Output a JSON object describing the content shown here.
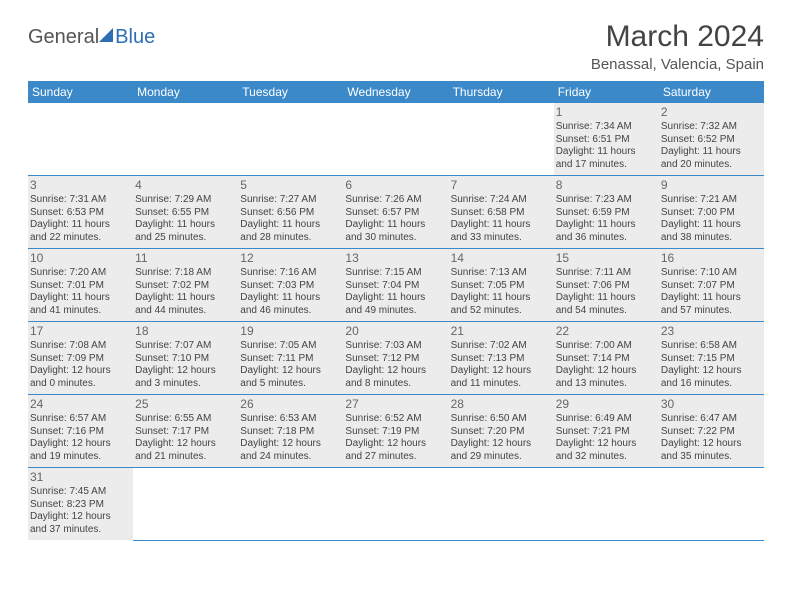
{
  "logo": {
    "part1": "General",
    "part2": "Blue"
  },
  "title": "March 2024",
  "subtitle": "Benassal, Valencia, Spain",
  "day_headers": [
    "Sunday",
    "Monday",
    "Tuesday",
    "Wednesday",
    "Thursday",
    "Friday",
    "Saturday"
  ],
  "colors": {
    "header_bg": "#3b89c9",
    "row_bg": "#ececec",
    "row_border": "#3b89c9",
    "text": "#444444"
  },
  "weeks": [
    [
      null,
      null,
      null,
      null,
      null,
      {
        "d": "1",
        "sr": "Sunrise: 7:34 AM",
        "ss": "Sunset: 6:51 PM",
        "dl1": "Daylight: 11 hours",
        "dl2": "and 17 minutes."
      },
      {
        "d": "2",
        "sr": "Sunrise: 7:32 AM",
        "ss": "Sunset: 6:52 PM",
        "dl1": "Daylight: 11 hours",
        "dl2": "and 20 minutes."
      }
    ],
    [
      {
        "d": "3",
        "sr": "Sunrise: 7:31 AM",
        "ss": "Sunset: 6:53 PM",
        "dl1": "Daylight: 11 hours",
        "dl2": "and 22 minutes."
      },
      {
        "d": "4",
        "sr": "Sunrise: 7:29 AM",
        "ss": "Sunset: 6:55 PM",
        "dl1": "Daylight: 11 hours",
        "dl2": "and 25 minutes."
      },
      {
        "d": "5",
        "sr": "Sunrise: 7:27 AM",
        "ss": "Sunset: 6:56 PM",
        "dl1": "Daylight: 11 hours",
        "dl2": "and 28 minutes."
      },
      {
        "d": "6",
        "sr": "Sunrise: 7:26 AM",
        "ss": "Sunset: 6:57 PM",
        "dl1": "Daylight: 11 hours",
        "dl2": "and 30 minutes."
      },
      {
        "d": "7",
        "sr": "Sunrise: 7:24 AM",
        "ss": "Sunset: 6:58 PM",
        "dl1": "Daylight: 11 hours",
        "dl2": "and 33 minutes."
      },
      {
        "d": "8",
        "sr": "Sunrise: 7:23 AM",
        "ss": "Sunset: 6:59 PM",
        "dl1": "Daylight: 11 hours",
        "dl2": "and 36 minutes."
      },
      {
        "d": "9",
        "sr": "Sunrise: 7:21 AM",
        "ss": "Sunset: 7:00 PM",
        "dl1": "Daylight: 11 hours",
        "dl2": "and 38 minutes."
      }
    ],
    [
      {
        "d": "10",
        "sr": "Sunrise: 7:20 AM",
        "ss": "Sunset: 7:01 PM",
        "dl1": "Daylight: 11 hours",
        "dl2": "and 41 minutes."
      },
      {
        "d": "11",
        "sr": "Sunrise: 7:18 AM",
        "ss": "Sunset: 7:02 PM",
        "dl1": "Daylight: 11 hours",
        "dl2": "and 44 minutes."
      },
      {
        "d": "12",
        "sr": "Sunrise: 7:16 AM",
        "ss": "Sunset: 7:03 PM",
        "dl1": "Daylight: 11 hours",
        "dl2": "and 46 minutes."
      },
      {
        "d": "13",
        "sr": "Sunrise: 7:15 AM",
        "ss": "Sunset: 7:04 PM",
        "dl1": "Daylight: 11 hours",
        "dl2": "and 49 minutes."
      },
      {
        "d": "14",
        "sr": "Sunrise: 7:13 AM",
        "ss": "Sunset: 7:05 PM",
        "dl1": "Daylight: 11 hours",
        "dl2": "and 52 minutes."
      },
      {
        "d": "15",
        "sr": "Sunrise: 7:11 AM",
        "ss": "Sunset: 7:06 PM",
        "dl1": "Daylight: 11 hours",
        "dl2": "and 54 minutes."
      },
      {
        "d": "16",
        "sr": "Sunrise: 7:10 AM",
        "ss": "Sunset: 7:07 PM",
        "dl1": "Daylight: 11 hours",
        "dl2": "and 57 minutes."
      }
    ],
    [
      {
        "d": "17",
        "sr": "Sunrise: 7:08 AM",
        "ss": "Sunset: 7:09 PM",
        "dl1": "Daylight: 12 hours",
        "dl2": "and 0 minutes."
      },
      {
        "d": "18",
        "sr": "Sunrise: 7:07 AM",
        "ss": "Sunset: 7:10 PM",
        "dl1": "Daylight: 12 hours",
        "dl2": "and 3 minutes."
      },
      {
        "d": "19",
        "sr": "Sunrise: 7:05 AM",
        "ss": "Sunset: 7:11 PM",
        "dl1": "Daylight: 12 hours",
        "dl2": "and 5 minutes."
      },
      {
        "d": "20",
        "sr": "Sunrise: 7:03 AM",
        "ss": "Sunset: 7:12 PM",
        "dl1": "Daylight: 12 hours",
        "dl2": "and 8 minutes."
      },
      {
        "d": "21",
        "sr": "Sunrise: 7:02 AM",
        "ss": "Sunset: 7:13 PM",
        "dl1": "Daylight: 12 hours",
        "dl2": "and 11 minutes."
      },
      {
        "d": "22",
        "sr": "Sunrise: 7:00 AM",
        "ss": "Sunset: 7:14 PM",
        "dl1": "Daylight: 12 hours",
        "dl2": "and 13 minutes."
      },
      {
        "d": "23",
        "sr": "Sunrise: 6:58 AM",
        "ss": "Sunset: 7:15 PM",
        "dl1": "Daylight: 12 hours",
        "dl2": "and 16 minutes."
      }
    ],
    [
      {
        "d": "24",
        "sr": "Sunrise: 6:57 AM",
        "ss": "Sunset: 7:16 PM",
        "dl1": "Daylight: 12 hours",
        "dl2": "and 19 minutes."
      },
      {
        "d": "25",
        "sr": "Sunrise: 6:55 AM",
        "ss": "Sunset: 7:17 PM",
        "dl1": "Daylight: 12 hours",
        "dl2": "and 21 minutes."
      },
      {
        "d": "26",
        "sr": "Sunrise: 6:53 AM",
        "ss": "Sunset: 7:18 PM",
        "dl1": "Daylight: 12 hours",
        "dl2": "and 24 minutes."
      },
      {
        "d": "27",
        "sr": "Sunrise: 6:52 AM",
        "ss": "Sunset: 7:19 PM",
        "dl1": "Daylight: 12 hours",
        "dl2": "and 27 minutes."
      },
      {
        "d": "28",
        "sr": "Sunrise: 6:50 AM",
        "ss": "Sunset: 7:20 PM",
        "dl1": "Daylight: 12 hours",
        "dl2": "and 29 minutes."
      },
      {
        "d": "29",
        "sr": "Sunrise: 6:49 AM",
        "ss": "Sunset: 7:21 PM",
        "dl1": "Daylight: 12 hours",
        "dl2": "and 32 minutes."
      },
      {
        "d": "30",
        "sr": "Sunrise: 6:47 AM",
        "ss": "Sunset: 7:22 PM",
        "dl1": "Daylight: 12 hours",
        "dl2": "and 35 minutes."
      }
    ],
    [
      {
        "d": "31",
        "sr": "Sunrise: 7:45 AM",
        "ss": "Sunset: 8:23 PM",
        "dl1": "Daylight: 12 hours",
        "dl2": "and 37 minutes."
      },
      null,
      null,
      null,
      null,
      null,
      null
    ]
  ]
}
